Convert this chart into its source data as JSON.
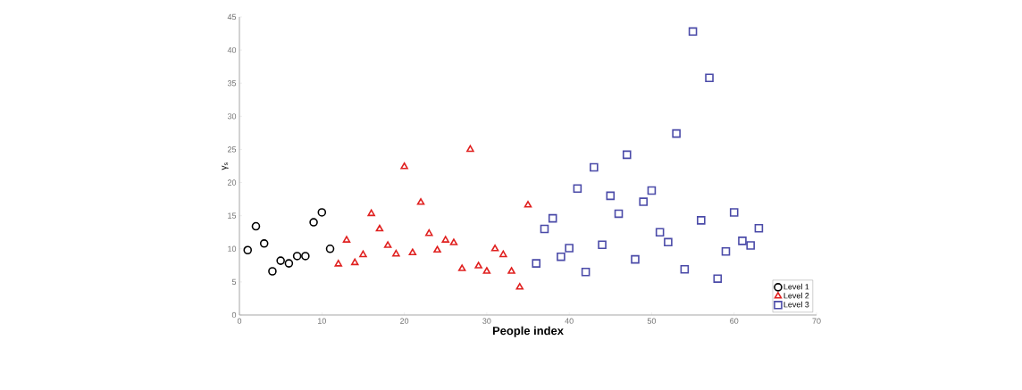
{
  "chart_data": {
    "type": "scatter",
    "xlabel": "People index",
    "ylabel": "γ$_{s}$",
    "xlim": [
      0,
      70
    ],
    "ylim": [
      0,
      45
    ],
    "xticks": [
      0,
      10,
      20,
      30,
      40,
      50,
      60,
      70
    ],
    "yticks": [
      0,
      5,
      10,
      15,
      20,
      25,
      30,
      35,
      40,
      45
    ],
    "legend": "bottom right",
    "grid": false,
    "series": [
      {
        "name": "Level 1",
        "color": "#000000",
        "marker": "circle",
        "x": [
          1,
          2,
          3,
          4,
          5,
          6,
          7,
          8,
          9,
          10,
          11
        ],
        "values": [
          9.8,
          13.4,
          10.8,
          6.6,
          8.2,
          7.8,
          8.9,
          8.9,
          14.0,
          15.5,
          10.0
        ]
      },
      {
        "name": "Level 2",
        "color": "#e0201f",
        "marker": "triangle",
        "x": [
          12,
          13,
          14,
          15,
          16,
          17,
          18,
          19,
          20,
          21,
          22,
          23,
          24,
          25,
          26,
          27,
          28,
          29,
          30,
          31,
          32,
          33,
          34,
          35
        ],
        "values": [
          7.7,
          11.3,
          7.9,
          9.1,
          15.3,
          13.0,
          10.5,
          9.2,
          22.4,
          9.4,
          17.0,
          12.3,
          9.8,
          11.3,
          10.9,
          7.0,
          25.0,
          7.4,
          6.6,
          10.0,
          9.1,
          6.6,
          4.2,
          16.6
        ]
      },
      {
        "name": "Level 3",
        "color": "#4a4aa8",
        "marker": "square",
        "x": [
          36,
          37,
          38,
          39,
          40,
          41,
          42,
          43,
          44,
          45,
          46,
          47,
          48,
          49,
          50,
          51,
          52,
          53,
          54,
          55,
          56,
          57,
          58,
          59,
          60,
          61,
          62,
          63
        ],
        "values": [
          7.8,
          13.0,
          14.6,
          8.8,
          10.1,
          19.1,
          6.5,
          22.3,
          10.6,
          18.0,
          15.3,
          24.2,
          8.4,
          17.1,
          18.8,
          12.5,
          11.0,
          27.4,
          6.9,
          42.8,
          14.3,
          35.8,
          5.5,
          9.6,
          15.5,
          11.2,
          10.5,
          13.1
        ]
      }
    ]
  }
}
